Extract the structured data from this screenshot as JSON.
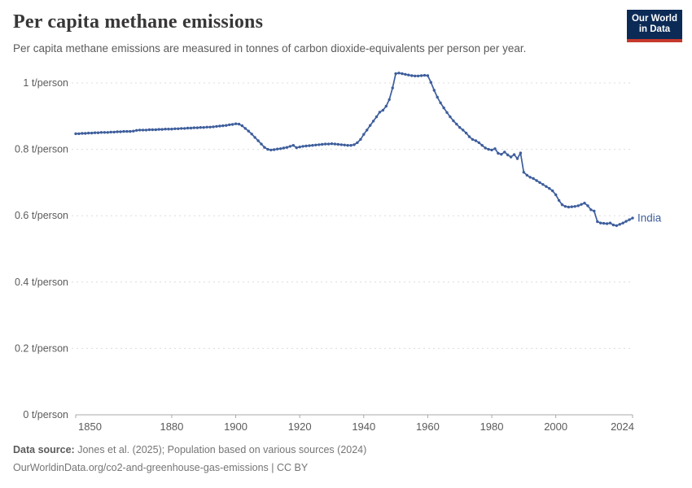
{
  "header": {
    "title": "Per capita methane emissions",
    "subtitle": "Per capita methane emissions are measured in tonnes of carbon dioxide-equivalents per person per year."
  },
  "logo": {
    "line1": "Our World",
    "line2": "in Data",
    "bg_color": "#0b2a56",
    "accent_color": "#c5392c"
  },
  "footer": {
    "source_label": "Data source:",
    "source_text": " Jones et al. (2025); Population based on various sources (2024)",
    "link_line": "OurWorldinData.org/co2-and-greenhouse-gas-emissions | CC BY"
  },
  "chart_data": {
    "type": "line",
    "title": "Per capita methane emissions",
    "series_name": "India",
    "series_color": "#3e5e9c",
    "grid": true,
    "legend_position": "end-of-line",
    "xlabel": "",
    "ylabel": "t/person",
    "x_range": [
      1850,
      2024
    ],
    "ylim": [
      0,
      1.05
    ],
    "x_ticks": [
      1850,
      1880,
      1900,
      1920,
      1940,
      1960,
      1980,
      2000,
      2024
    ],
    "y_ticks": [
      {
        "value": 0,
        "label": "0 t/person"
      },
      {
        "value": 0.2,
        "label": "0.2 t/person"
      },
      {
        "value": 0.4,
        "label": "0.4 t/person"
      },
      {
        "value": 0.6,
        "label": "0.6 t/person"
      },
      {
        "value": 0.8,
        "label": "0.8 t/person"
      },
      {
        "value": 1,
        "label": "1 t/person"
      }
    ],
    "x_start_year": 1850,
    "x_step_years": 1,
    "values": [
      0.847,
      0.847,
      0.848,
      0.848,
      0.849,
      0.849,
      0.85,
      0.85,
      0.851,
      0.851,
      0.851,
      0.852,
      0.852,
      0.853,
      0.853,
      0.854,
      0.854,
      0.854,
      0.855,
      0.857,
      0.858,
      0.858,
      0.858,
      0.859,
      0.859,
      0.859,
      0.86,
      0.86,
      0.861,
      0.861,
      0.861,
      0.862,
      0.862,
      0.863,
      0.863,
      0.864,
      0.864,
      0.865,
      0.865,
      0.866,
      0.866,
      0.867,
      0.867,
      0.868,
      0.869,
      0.87,
      0.871,
      0.872,
      0.874,
      0.875,
      0.877,
      0.876,
      0.871,
      0.863,
      0.855,
      0.846,
      0.836,
      0.826,
      0.816,
      0.806,
      0.8,
      0.798,
      0.799,
      0.801,
      0.802,
      0.804,
      0.806,
      0.809,
      0.812,
      0.805,
      0.807,
      0.809,
      0.81,
      0.811,
      0.812,
      0.813,
      0.814,
      0.815,
      0.816,
      0.816,
      0.817,
      0.816,
      0.815,
      0.814,
      0.813,
      0.812,
      0.812,
      0.814,
      0.82,
      0.83,
      0.845,
      0.858,
      0.872,
      0.885,
      0.898,
      0.912,
      0.918,
      0.93,
      0.95,
      0.985,
      1.028,
      1.03,
      1.028,
      1.026,
      1.024,
      1.022,
      1.021,
      1.021,
      1.022,
      1.023,
      1.022,
      1.002,
      0.978,
      0.957,
      0.94,
      0.925,
      0.911,
      0.898,
      0.886,
      0.876,
      0.866,
      0.858,
      0.849,
      0.838,
      0.83,
      0.826,
      0.82,
      0.812,
      0.804,
      0.8,
      0.798,
      0.802,
      0.788,
      0.785,
      0.792,
      0.783,
      0.777,
      0.784,
      0.772,
      0.789,
      0.731,
      0.722,
      0.716,
      0.712,
      0.706,
      0.7,
      0.694,
      0.688,
      0.682,
      0.675,
      0.663,
      0.646,
      0.633,
      0.628,
      0.626,
      0.627,
      0.628,
      0.63,
      0.634,
      0.638,
      0.63,
      0.618,
      0.614,
      0.582,
      0.578,
      0.577,
      0.576,
      0.578,
      0.572,
      0.57,
      0.574,
      0.578,
      0.583,
      0.588,
      0.593
    ]
  }
}
